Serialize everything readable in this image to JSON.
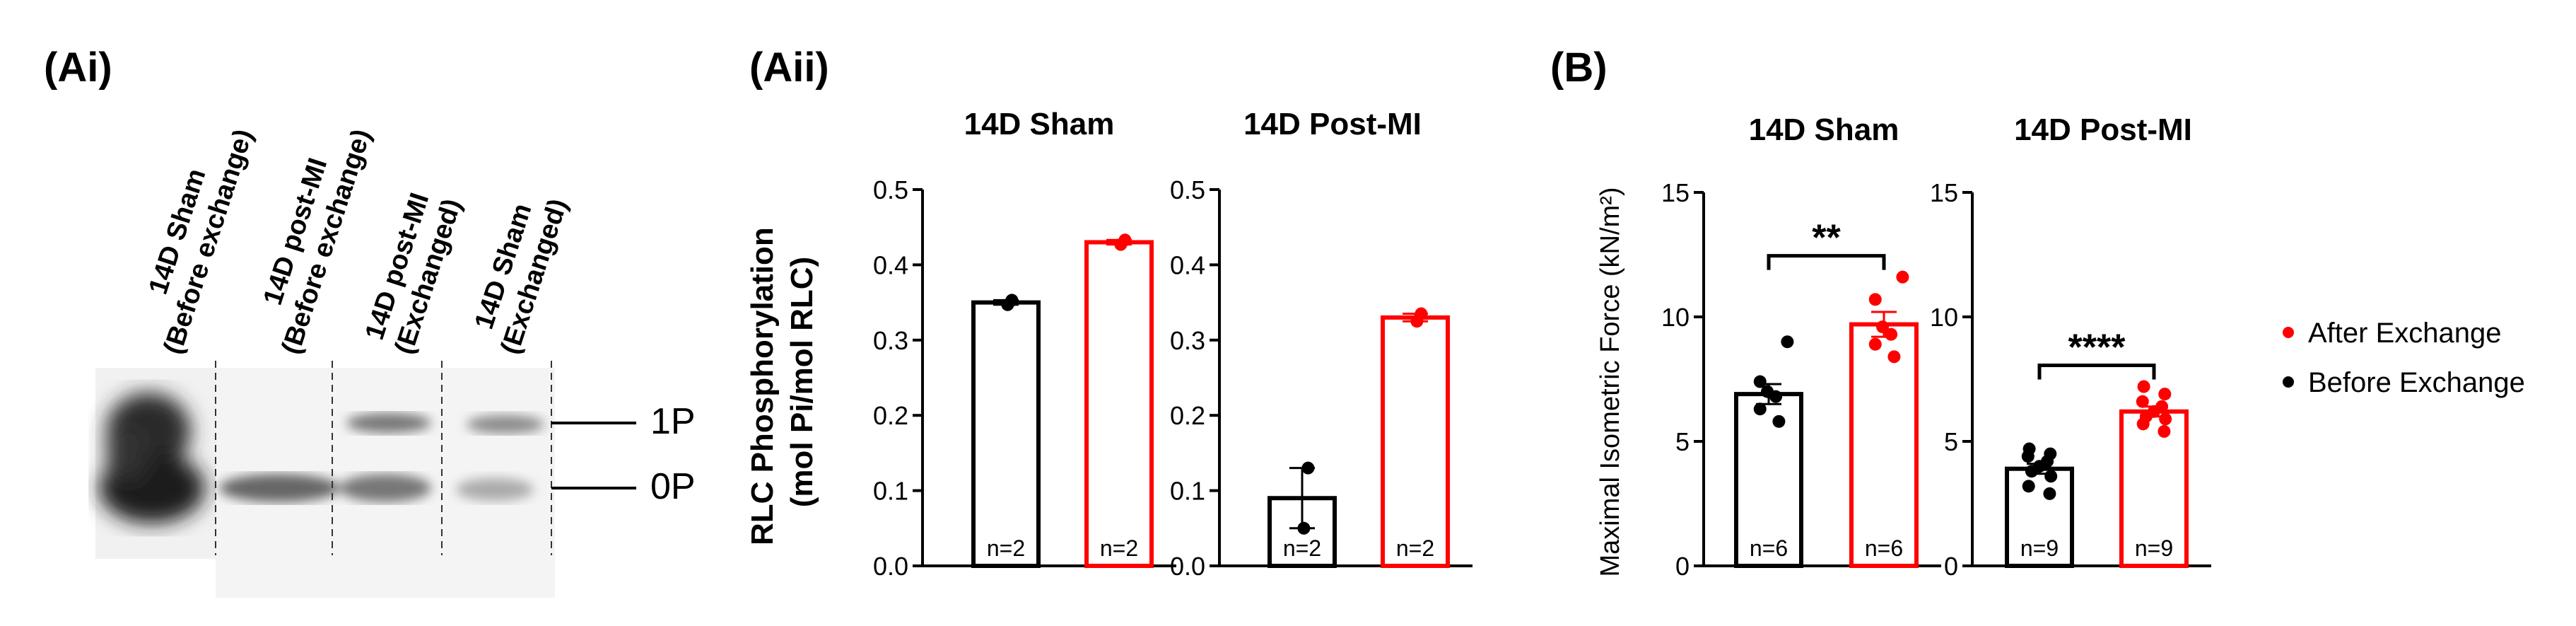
{
  "panels": {
    "ai": "(Ai)",
    "aii": "(Aii)",
    "b": "(B)"
  },
  "blot": {
    "lanes": [
      "14D Sham\n(Before exchange)",
      "14D post-MI\n(Before exchange)",
      "14D post-MI\n(Exchanged)",
      "14D Sham\n(Exchanged)"
    ],
    "bands": {
      "upper": "1P",
      "lower": "0P"
    }
  },
  "colors": {
    "before": "#000000",
    "after": "#ff0000",
    "axis": "#000000"
  },
  "legend": {
    "after": "After Exchange",
    "before": "Before Exchange",
    "position": "right"
  },
  "chart_data": [
    {
      "type": "bar",
      "panel": "Aii",
      "title": "14D Sham",
      "ylabel": "RLC Phosphorylation\n(mol Pi/mol RLC)",
      "ylim": [
        0,
        0.5
      ],
      "yticks": [
        0.0,
        0.1,
        0.2,
        0.3,
        0.4,
        0.5
      ],
      "ytick_labels": [
        "0.0",
        "0.1",
        "0.2",
        "0.3",
        "0.4",
        "0.5"
      ],
      "categories": [
        "Before Exchange",
        "After Exchange"
      ],
      "values": [
        0.35,
        0.43
      ],
      "errors": [
        0.003,
        0.003
      ],
      "n_labels": [
        "n=2",
        "n=2"
      ],
      "points": [
        [
          0.347,
          0.353
        ],
        [
          0.427,
          0.433
        ]
      ],
      "significance": ""
    },
    {
      "type": "bar",
      "panel": "Aii",
      "title": "14D Post-MI",
      "ylim": [
        0,
        0.5
      ],
      "yticks": [
        0.0,
        0.1,
        0.2,
        0.3,
        0.4,
        0.5
      ],
      "ytick_labels": [
        "0.0",
        "0.1",
        "0.2",
        "0.3",
        "0.4",
        "0.5"
      ],
      "categories": [
        "Before Exchange",
        "After Exchange"
      ],
      "values": [
        0.09,
        0.33
      ],
      "errors": [
        0.04,
        0.005
      ],
      "n_labels": [
        "n=2",
        "n=2"
      ],
      "points": [
        [
          0.05,
          0.13
        ],
        [
          0.325,
          0.335
        ]
      ],
      "significance": ""
    },
    {
      "type": "bar",
      "panel": "B",
      "title": "14D Sham",
      "ylabel": "Maximal Isometric Force (kN/m²)",
      "ylim": [
        0,
        15
      ],
      "yticks": [
        0,
        5,
        10,
        15
      ],
      "ytick_labels": [
        "0",
        "5",
        "10",
        "15"
      ],
      "categories": [
        "Before Exchange",
        "After Exchange"
      ],
      "values": [
        6.9,
        9.7
      ],
      "errors": [
        0.4,
        0.5
      ],
      "n_labels": [
        "n=6",
        "n=6"
      ],
      "points": [
        [
          5.8,
          6.3,
          6.8,
          7.0,
          7.4,
          9.0
        ],
        [
          8.4,
          8.9,
          9.3,
          9.6,
          10.7,
          11.6
        ]
      ],
      "significance": "**"
    },
    {
      "type": "bar",
      "panel": "B",
      "title": "14D Post-MI",
      "ylim": [
        0,
        15
      ],
      "yticks": [
        0,
        5,
        10,
        15
      ],
      "ytick_labels": [
        "0",
        "5",
        "10",
        "15"
      ],
      "categories": [
        "Before Exchange",
        "After Exchange"
      ],
      "values": [
        3.9,
        6.2
      ],
      "errors": [
        0.2,
        0.2
      ],
      "n_labels": [
        "n=9",
        "n=9"
      ],
      "points": [
        [
          2.9,
          3.2,
          3.6,
          3.8,
          4.0,
          4.2,
          4.4,
          4.5,
          4.7
        ],
        [
          5.4,
          5.7,
          5.9,
          6.0,
          6.2,
          6.4,
          6.6,
          6.9,
          7.2
        ]
      ],
      "significance": "****"
    }
  ]
}
